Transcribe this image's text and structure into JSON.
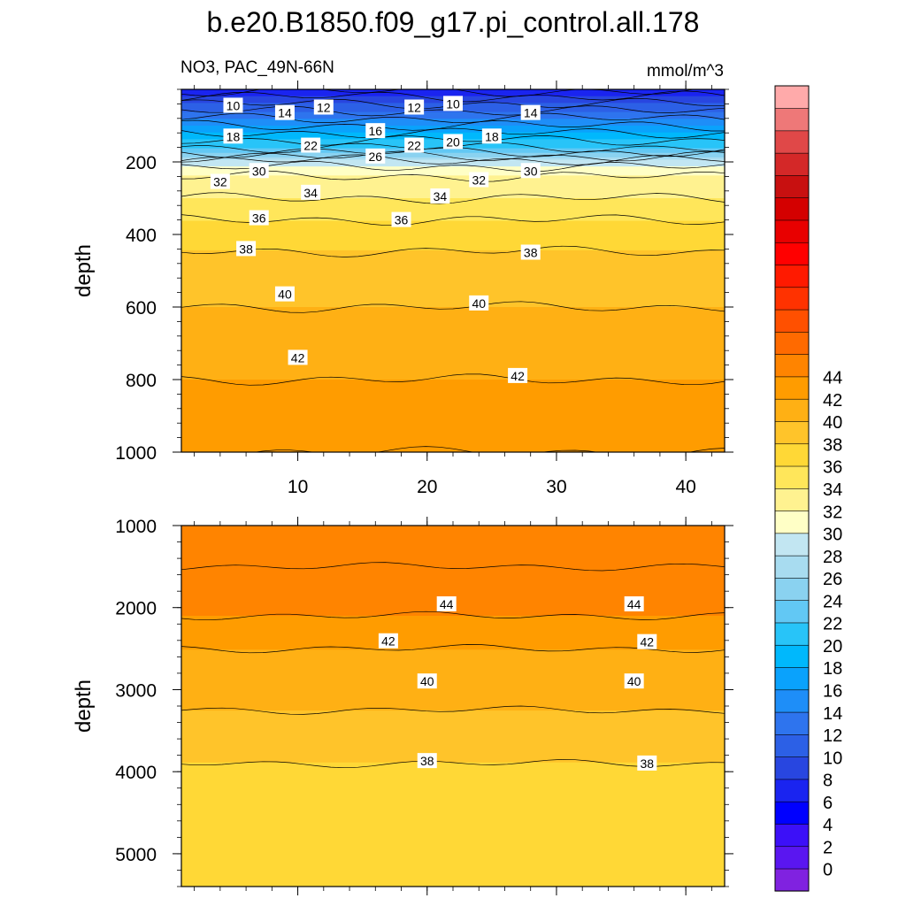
{
  "figure": {
    "title": "b.e20.B1850.f09_g17.pi_control.all.178",
    "subtitle_left": "NO3, PAC_49N-66N",
    "subtitle_right": "mmol/m^3"
  },
  "colorbar": {
    "levels": [
      0,
      2,
      4,
      6,
      8,
      10,
      12,
      14,
      16,
      18,
      20,
      22,
      24,
      26,
      28,
      30,
      32,
      34,
      36,
      38,
      40,
      42,
      44
    ],
    "colors": [
      "#8022e0",
      "#5a16f0",
      "#3c10f8",
      "#0000ff",
      "#1a24f0",
      "#2846e0",
      "#2c60e6",
      "#2e74ee",
      "#1e8ef8",
      "#0aa2fc",
      "#00b8fc",
      "#28c4f8",
      "#62c8f4",
      "#8ad2f0",
      "#a8dcf0",
      "#c2e6f2",
      "#ffffc6",
      "#fff290",
      "#ffe65a",
      "#ffd836",
      "#ffc42a",
      "#ffb014",
      "#ff9c00",
      "#ff8400",
      "#ff6a00",
      "#ff5000",
      "#ff3200",
      "#ff1a00",
      "#ff0000",
      "#e80000",
      "#d40000",
      "#c81010",
      "#d42828",
      "#e04848",
      "#ee7878",
      "#ffaaaa"
    ],
    "label_values": [
      0,
      2,
      4,
      6,
      8,
      10,
      12,
      14,
      16,
      18,
      20,
      22,
      24,
      26,
      28,
      30,
      32,
      34,
      36,
      38,
      40,
      42,
      44
    ]
  },
  "chart_data": [
    {
      "type": "heatmap",
      "panel": "upper",
      "xlim": [
        1,
        43
      ],
      "ylim": [
        1000,
        0
      ],
      "ylabel": "depth",
      "xticks": [
        10,
        20,
        30,
        40
      ],
      "yticks": [
        200,
        400,
        600,
        800,
        1000
      ],
      "profile": {
        "depth": [
          5,
          20,
          40,
          60,
          80,
          100,
          120,
          140,
          160,
          180,
          200,
          240,
          300,
          360,
          420,
          500,
          600,
          700,
          800,
          900,
          1000
        ],
        "value": [
          6,
          8,
          10,
          12,
          14,
          16,
          18,
          20,
          22,
          25,
          29,
          32,
          34,
          36,
          37.5,
          39,
          40,
          41,
          42,
          43,
          44
        ]
      },
      "contour_labels": [
        {
          "x": 5,
          "depth": 45,
          "label": "10"
        },
        {
          "x": 9,
          "depth": 65,
          "label": "14"
        },
        {
          "x": 12,
          "depth": 50,
          "label": "12"
        },
        {
          "x": 19,
          "depth": 50,
          "label": "12"
        },
        {
          "x": 22,
          "depth": 40,
          "label": "10"
        },
        {
          "x": 28,
          "depth": 65,
          "label": "14"
        },
        {
          "x": 5,
          "depth": 130,
          "label": "18"
        },
        {
          "x": 16,
          "depth": 115,
          "label": "16"
        },
        {
          "x": 11,
          "depth": 155,
          "label": "22"
        },
        {
          "x": 19,
          "depth": 155,
          "label": "22"
        },
        {
          "x": 22,
          "depth": 145,
          "label": "20"
        },
        {
          "x": 25,
          "depth": 130,
          "label": "18"
        },
        {
          "x": 16,
          "depth": 185,
          "label": "26"
        },
        {
          "x": 7,
          "depth": 225,
          "label": "30"
        },
        {
          "x": 4,
          "depth": 255,
          "label": "32"
        },
        {
          "x": 28,
          "depth": 225,
          "label": "30"
        },
        {
          "x": 24,
          "depth": 250,
          "label": "32"
        },
        {
          "x": 11,
          "depth": 285,
          "label": "34"
        },
        {
          "x": 21,
          "depth": 295,
          "label": "34"
        },
        {
          "x": 7,
          "depth": 355,
          "label": "36"
        },
        {
          "x": 18,
          "depth": 360,
          "label": "36"
        },
        {
          "x": 6,
          "depth": 440,
          "label": "38"
        },
        {
          "x": 28,
          "depth": 450,
          "label": "38"
        },
        {
          "x": 9,
          "depth": 565,
          "label": "40"
        },
        {
          "x": 24,
          "depth": 590,
          "label": "40"
        },
        {
          "x": 10,
          "depth": 740,
          "label": "42"
        },
        {
          "x": 27,
          "depth": 790,
          "label": "42"
        }
      ]
    },
    {
      "type": "heatmap",
      "panel": "lower",
      "xlim": [
        1,
        43
      ],
      "ylim": [
        5400,
        1000
      ],
      "ylabel": "depth",
      "xticks": [
        10,
        20,
        30,
        40
      ],
      "yticks": [
        1000,
        2000,
        3000,
        4000,
        5000
      ],
      "profile": {
        "depth": [
          1000,
          1300,
          1500,
          1700,
          2000,
          2300,
          2600,
          3000,
          3500,
          3900,
          5400
        ],
        "value": [
          44.5,
          45.5,
          46,
          45.5,
          44.5,
          43,
          41.5,
          40.5,
          39.5,
          38,
          37.5
        ]
      },
      "contour_labels": [
        {
          "x": 21.5,
          "depth": 1960,
          "label": "44"
        },
        {
          "x": 36,
          "depth": 1960,
          "label": "44"
        },
        {
          "x": 17,
          "depth": 2410,
          "label": "42"
        },
        {
          "x": 37,
          "depth": 2420,
          "label": "42"
        },
        {
          "x": 20,
          "depth": 2900,
          "label": "40"
        },
        {
          "x": 36,
          "depth": 2900,
          "label": "40"
        },
        {
          "x": 20,
          "depth": 3870,
          "label": "38"
        },
        {
          "x": 37,
          "depth": 3900,
          "label": "38"
        }
      ]
    }
  ]
}
